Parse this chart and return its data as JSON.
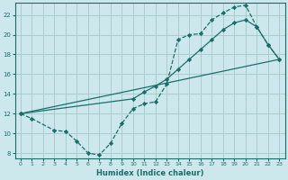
{
  "bg_color": "#cce8ec",
  "grid_color": "#aacccc",
  "line_color": "#1a6e6a",
  "xlabel": "Humidex (Indice chaleur)",
  "xlim": [
    -0.5,
    23.5
  ],
  "ylim": [
    7.5,
    23.2
  ],
  "yticks": [
    8,
    10,
    12,
    14,
    16,
    18,
    20,
    22
  ],
  "xticks": [
    0,
    1,
    2,
    3,
    4,
    5,
    6,
    7,
    8,
    9,
    10,
    11,
    12,
    13,
    14,
    15,
    16,
    17,
    18,
    19,
    20,
    21,
    22,
    23
  ],
  "line1_x": [
    0,
    1,
    3,
    4,
    5,
    6,
    7,
    8,
    9,
    10,
    11,
    12,
    13,
    14,
    15,
    16,
    17,
    18,
    19,
    20,
    21,
    22,
    23
  ],
  "line1_y": [
    12,
    11.5,
    10.3,
    10.2,
    9.2,
    8.0,
    7.8,
    9.0,
    11.0,
    12.5,
    13.0,
    13.2,
    15.0,
    19.5,
    20.0,
    20.1,
    21.5,
    22.2,
    22.8,
    23.0,
    20.8,
    19.0,
    17.5
  ],
  "line2_x": [
    0,
    23
  ],
  "line2_y": [
    12,
    17.5
  ],
  "line3_x": [
    0,
    10,
    11,
    12,
    13,
    14,
    15,
    16,
    17,
    18,
    19,
    20,
    21,
    22,
    23
  ],
  "line3_y": [
    12,
    13.5,
    14.2,
    14.8,
    15.5,
    16.5,
    17.5,
    18.5,
    19.5,
    20.5,
    21.2,
    21.5,
    20.8,
    19.0,
    17.5
  ]
}
